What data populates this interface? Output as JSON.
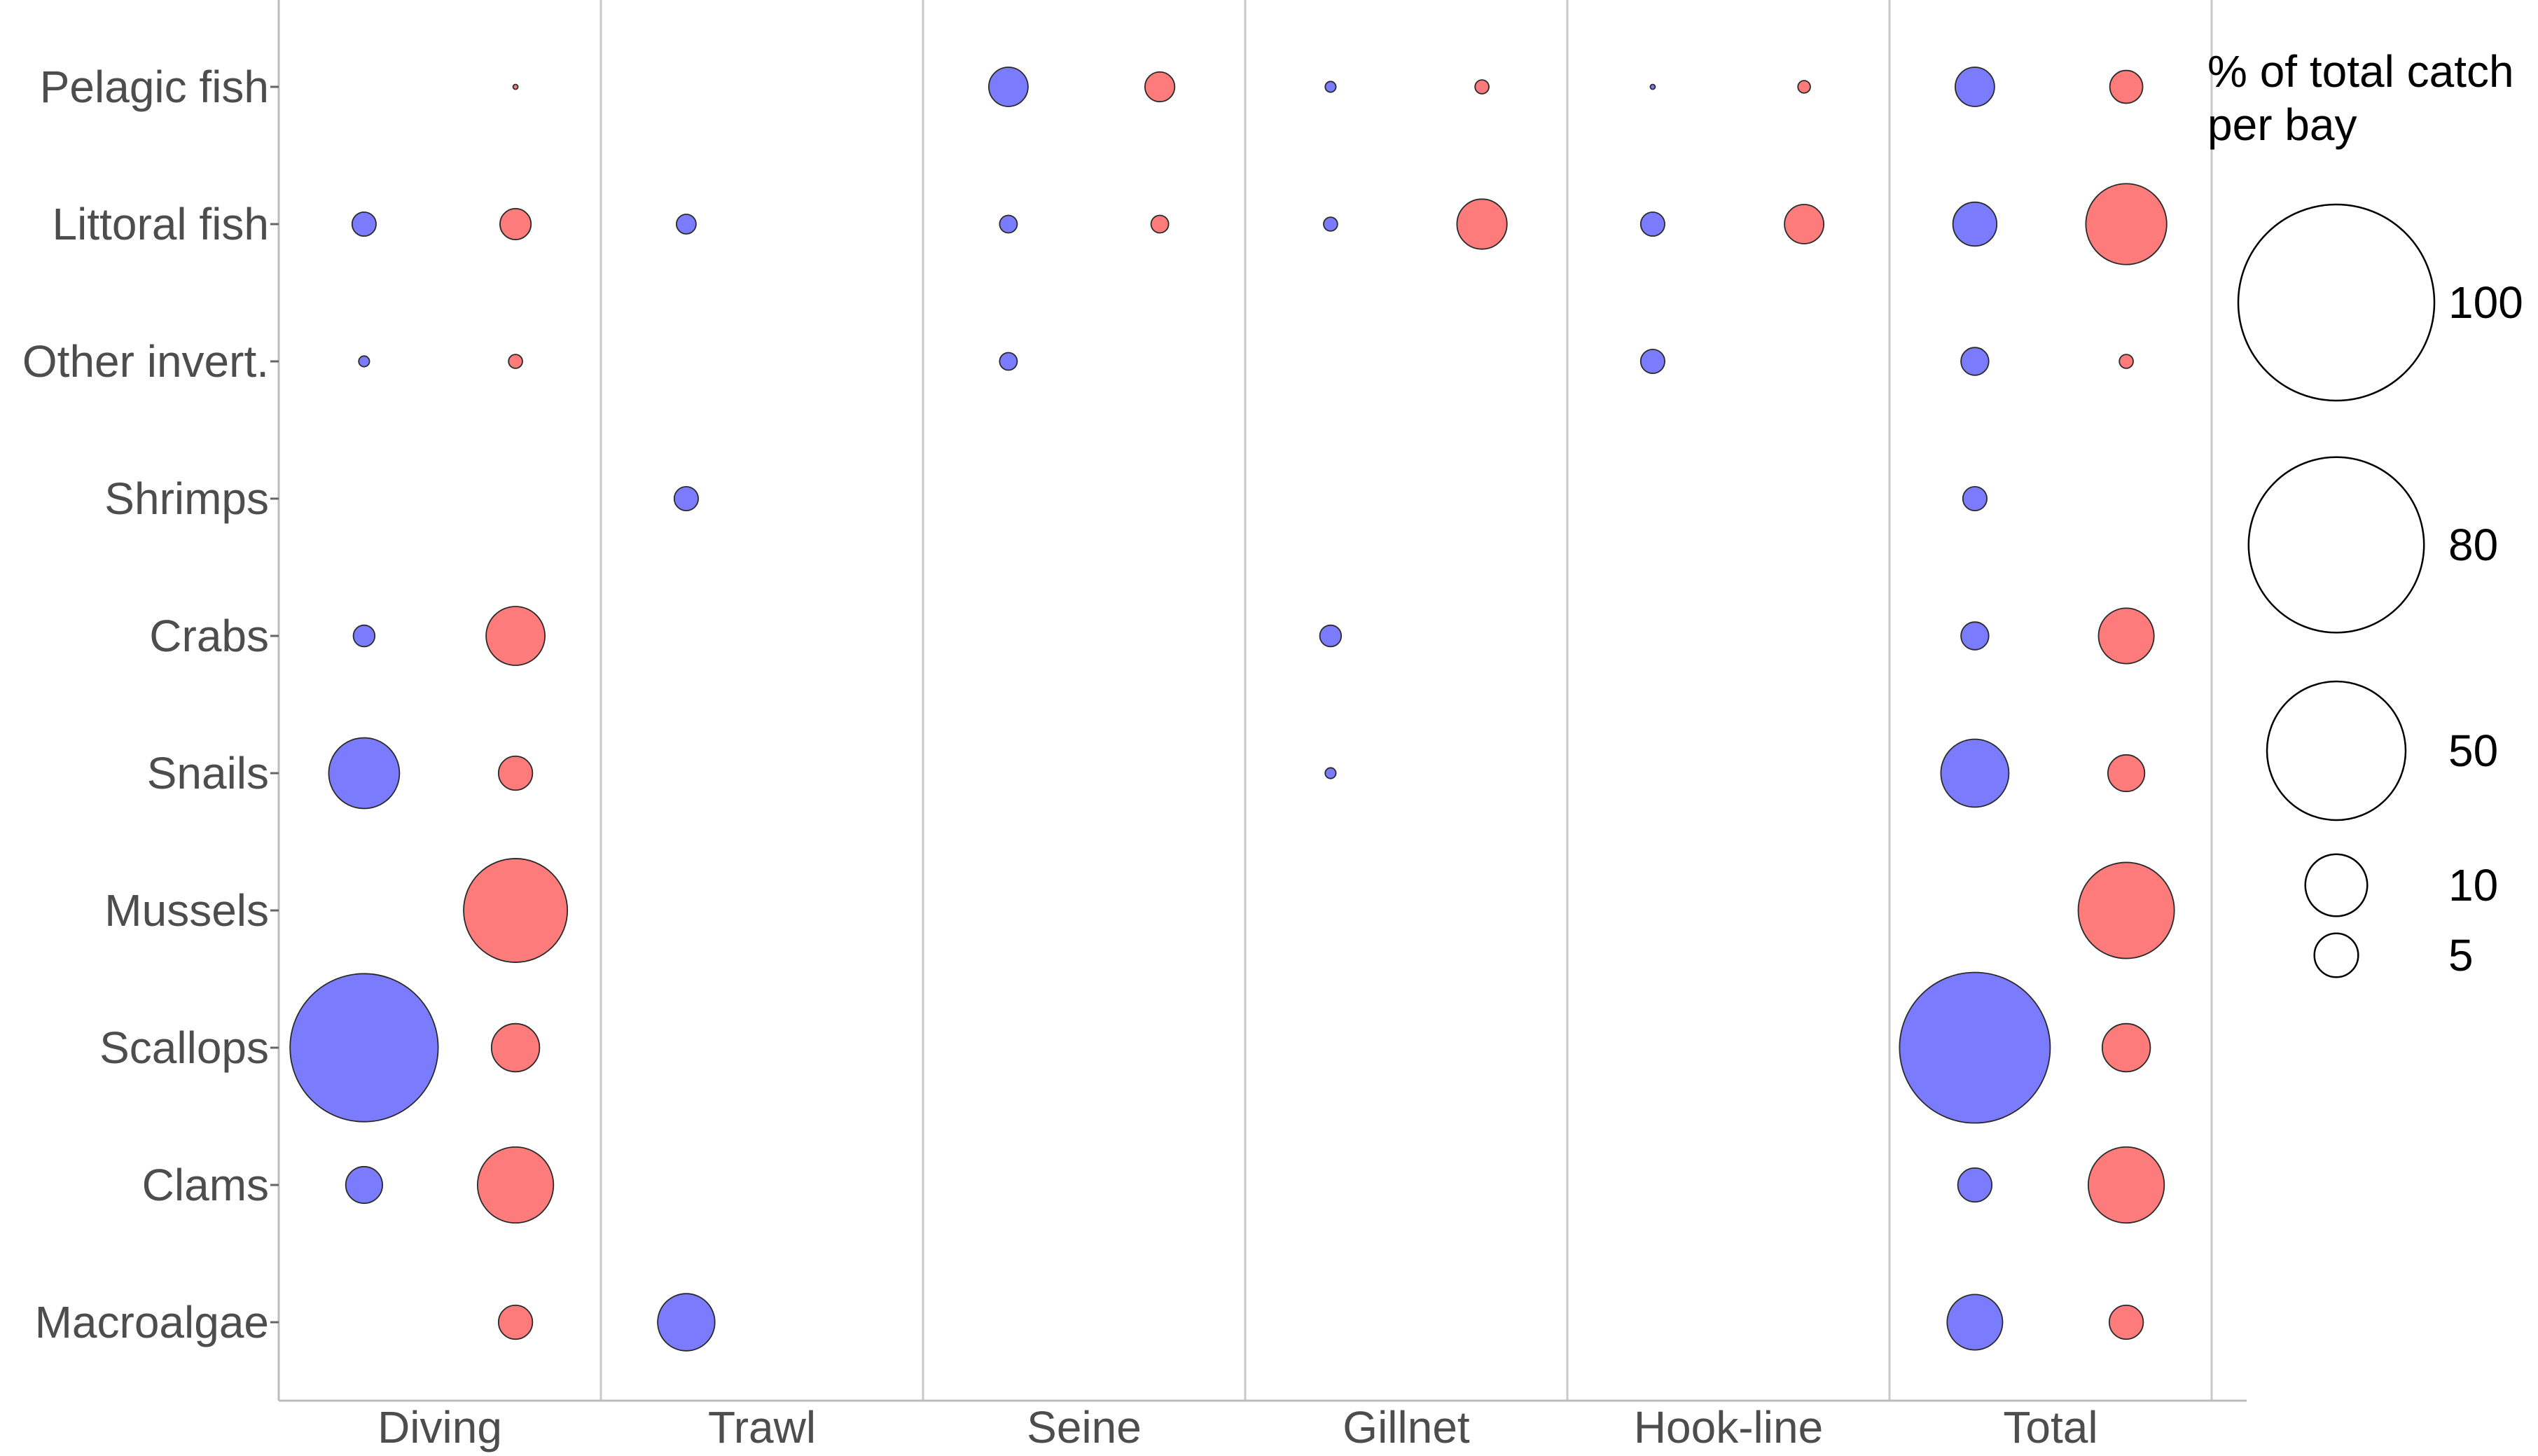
{
  "chart_data": {
    "type": "bubble",
    "legend": {
      "title_lines": [
        "% of total catch",
        " per bay"
      ],
      "sizes": [
        100,
        80,
        50,
        10,
        5
      ],
      "labels": [
        "100",
        "80",
        "50",
        "10",
        "5"
      ],
      "placement": "right"
    },
    "panels": [
      "Diving",
      "Trawl",
      "Seine",
      "Gillnet",
      "Hook-line",
      "Total"
    ],
    "categories": [
      "Pelagic fish",
      "Littoral fish",
      "Other invert.",
      "Shrimps",
      "Crabs",
      "Snails",
      "Mussels",
      "Scallops",
      "Clams",
      "Macroalgae"
    ],
    "series": [
      {
        "color": "#7b7bfd",
        "values": {
          "Diving": [
            null,
            1.5,
            0.3,
            null,
            1.2,
            13,
            null,
            57,
            3.5,
            null
          ],
          "Trawl": [
            null,
            1,
            null,
            1.5,
            null,
            null,
            null,
            null,
            null,
            8.5
          ],
          "Seine": [
            4,
            0.8,
            0.8,
            null,
            null,
            null,
            null,
            null,
            null,
            null
          ],
          "Gillnet": [
            0.3,
            0.5,
            null,
            null,
            1.2,
            0.3,
            null,
            null,
            null,
            null
          ],
          "Hook-line": [
            0.05,
            1.5,
            1.5,
            null,
            null,
            null,
            null,
            null,
            null,
            null
          ],
          "Total": [
            4,
            5,
            2,
            1.5,
            2,
            12,
            0,
            59,
            3,
            8
          ]
        }
      },
      {
        "color": "#fd7b7b",
        "values": {
          "Diving": [
            0.05,
            2.5,
            0.5,
            null,
            9,
            3,
            28,
            6,
            15,
            3
          ],
          "Trawl": [
            null,
            null,
            null,
            null,
            null,
            null,
            null,
            null,
            null,
            null
          ],
          "Seine": [
            2.3,
            0.8,
            null,
            null,
            null,
            null,
            null,
            null,
            null,
            null
          ],
          "Gillnet": [
            0.5,
            6.5,
            null,
            null,
            null,
            null,
            null,
            null,
            null,
            null
          ],
          "Hook-line": [
            0.4,
            4,
            null,
            null,
            null,
            null,
            null,
            null,
            null,
            null
          ],
          "Total": [
            2.8,
            17,
            0.5,
            0,
            8,
            3.5,
            24,
            6,
            15,
            3
          ]
        }
      }
    ]
  }
}
